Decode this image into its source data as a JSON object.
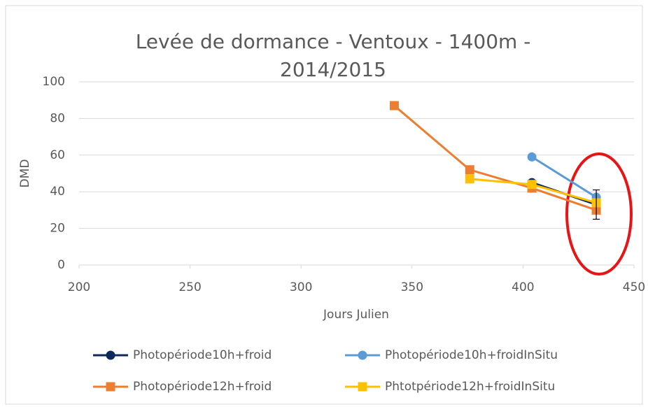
{
  "chart_data": {
    "type": "line",
    "title": "Levée de dormance - Ventoux - 1400m - 2014/2015",
    "x_label": "Jours Julien",
    "y_label": "DMD",
    "xlim": [
      200,
      450
    ],
    "xticks": [
      200,
      250,
      300,
      350,
      400,
      450
    ],
    "ylim": [
      0,
      100
    ],
    "yticks": [
      0,
      20,
      40,
      60,
      80,
      100
    ],
    "grid": true,
    "legend": "bottom",
    "series": [
      {
        "name": "Photopériode10h+froid",
        "color": "#0e2a5c",
        "marker": "circle",
        "x": [
          404,
          433
        ],
        "values": [
          45,
          33
        ],
        "errors": [
          null,
          8
        ]
      },
      {
        "name": "Photopériode10h+froidInSitu",
        "color": "#5b9bd5",
        "marker": "circle",
        "x": [
          404,
          433
        ],
        "values": [
          59,
          37
        ]
      },
      {
        "name": "Photopériode12h+froid",
        "color": "#ed7d31",
        "marker": "square",
        "x": [
          342,
          376,
          404,
          433
        ],
        "values": [
          87,
          52,
          42,
          30
        ]
      },
      {
        "name": "Phtotpériode12h+froidInSitu",
        "color": "#ffc000",
        "marker": "square",
        "x": [
          376,
          404,
          433
        ],
        "values": [
          47,
          44,
          34
        ]
      }
    ]
  }
}
